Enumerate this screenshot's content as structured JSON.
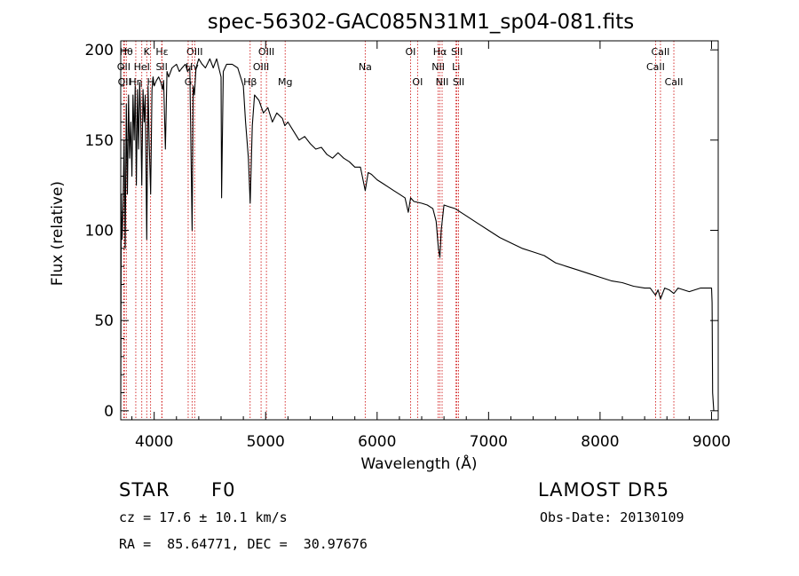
{
  "chart_data": {
    "type": "line",
    "title": "spec-56302-GAC085N31M1_sp04-081.fits",
    "xlabel": "Wavelength (Å)",
    "ylabel": "Flux (relative)",
    "xlim": [
      3700,
      9060
    ],
    "ylim": [
      -5,
      205
    ],
    "xticks": [
      4000,
      5000,
      6000,
      7000,
      8000,
      9000
    ],
    "yticks": [
      0,
      50,
      100,
      150,
      200
    ],
    "grid": false,
    "line_color": "#000000",
    "marker_color": "#cc0000",
    "series": [
      {
        "x": [
          3700,
          3705,
          3712,
          3720,
          3730,
          3740,
          3750,
          3760,
          3770,
          3780,
          3790,
          3800,
          3810,
          3820,
          3830,
          3840,
          3850,
          3860,
          3870,
          3880,
          3889,
          3900,
          3910,
          3920,
          3933,
          3945,
          3955,
          3968,
          3980,
          3990,
          4000,
          4020,
          4040,
          4060,
          4075,
          4085,
          4101,
          4115,
          4130,
          4160,
          4200,
          4226,
          4250,
          4280,
          4300,
          4320,
          4340,
          4350,
          4361,
          4375,
          4400,
          4430,
          4460,
          4500,
          4530,
          4560,
          4600,
          4605,
          4620,
          4650,
          4700,
          4750,
          4800,
          4820,
          4845,
          4861,
          4880,
          4900,
          4940,
          4980,
          5020,
          5060,
          5100,
          5150,
          5172,
          5200,
          5250,
          5300,
          5350,
          5400,
          5450,
          5500,
          5550,
          5600,
          5650,
          5700,
          5750,
          5800,
          5850,
          5893,
          5920,
          5950,
          6000,
          6050,
          6100,
          6150,
          6200,
          6250,
          6280,
          6300,
          6330,
          6400,
          6450,
          6500,
          6530,
          6550,
          6563,
          6575,
          6600,
          6650,
          6700,
          6750,
          6800,
          6900,
          7000,
          7100,
          7200,
          7300,
          7400,
          7500,
          7600,
          7700,
          7800,
          7900,
          8000,
          8100,
          8200,
          8300,
          8400,
          8450,
          8498,
          8520,
          8542,
          8580,
          8620,
          8662,
          8700,
          8750,
          8800,
          8850,
          8900,
          8950,
          8990,
          9000,
          9005,
          9010,
          9020
        ],
        "values": [
          0,
          120,
          95,
          110,
          150,
          90,
          170,
          120,
          175,
          140,
          160,
          130,
          175,
          150,
          180,
          125,
          178,
          145,
          182,
          160,
          125,
          178,
          160,
          175,
          95,
          180,
          150,
          120,
          178,
          185,
          180,
          183,
          185,
          182,
          178,
          183,
          145,
          188,
          185,
          190,
          192,
          188,
          190,
          192,
          188,
          190,
          100,
          180,
          175,
          190,
          195,
          192,
          190,
          195,
          190,
          195,
          185,
          118,
          188,
          192,
          192,
          190,
          180,
          160,
          140,
          115,
          158,
          175,
          172,
          165,
          168,
          160,
          165,
          162,
          158,
          160,
          155,
          150,
          152,
          148,
          145,
          146,
          142,
          140,
          143,
          140,
          138,
          135,
          135,
          122,
          132,
          131,
          128,
          126,
          124,
          122,
          120,
          118,
          110,
          118,
          116,
          115,
          114,
          112,
          105,
          90,
          85,
          100,
          114,
          113,
          112,
          110,
          108,
          104,
          100,
          96,
          93,
          90,
          88,
          86,
          82,
          80,
          78,
          76,
          74,
          72,
          71,
          69,
          68,
          68,
          64,
          67,
          62,
          68,
          67,
          65,
          68,
          67,
          66,
          67,
          68,
          68,
          68,
          68,
          60,
          10,
          0
        ]
      }
    ],
    "line_markers": [
      {
        "label": "Hθ",
        "x": 3750,
        "row": 1
      },
      {
        "label": "OII",
        "x": 3727,
        "row": 2
      },
      {
        "label": "Hη",
        "x": 3835,
        "row": 3
      },
      {
        "label": "OII",
        "x": 3733,
        "row": 3
      },
      {
        "label": "K",
        "x": 3933,
        "row": 1
      },
      {
        "label": "HeI",
        "x": 3889,
        "row": 2
      },
      {
        "label": "Hε",
        "x": 4070,
        "row": 1
      },
      {
        "label": "SII",
        "x": 4068,
        "row": 2
      },
      {
        "label": "H",
        "x": 3968,
        "row": 3
      },
      {
        "label": "OIII",
        "x": 4363,
        "row": 1
      },
      {
        "label": "Hγ",
        "x": 4340,
        "row": 2
      },
      {
        "label": "G",
        "x": 4305,
        "row": 3
      },
      {
        "label": "OIII",
        "x": 5007,
        "row": 1
      },
      {
        "label": "OIII",
        "x": 4959,
        "row": 2
      },
      {
        "label": "Hβ",
        "x": 4861,
        "row": 3
      },
      {
        "label": "Mg",
        "x": 5175,
        "row": 3
      },
      {
        "label": "Na",
        "x": 5893,
        "row": 2
      },
      {
        "label": "OI",
        "x": 6300,
        "row": 1
      },
      {
        "label": "OI",
        "x": 6363,
        "row": 3
      },
      {
        "label": "Hα",
        "x": 6563,
        "row": 1
      },
      {
        "label": "SII",
        "x": 6716,
        "row": 1
      },
      {
        "label": "NII",
        "x": 6548,
        "row": 2
      },
      {
        "label": "Li",
        "x": 6708,
        "row": 2
      },
      {
        "label": "NII",
        "x": 6583,
        "row": 3
      },
      {
        "label": "SII",
        "x": 6731,
        "row": 3
      },
      {
        "label": "CaII",
        "x": 8542,
        "row": 1
      },
      {
        "label": "CaII",
        "x": 8498,
        "row": 2
      },
      {
        "label": "CaII",
        "x": 8662,
        "row": 3
      }
    ]
  },
  "info": {
    "class_label": "STAR",
    "subclass": "F0",
    "survey": "LAMOST DR5",
    "redshift": "cz = 17.6 ± 10.1 km/s",
    "obs_date": "Obs-Date: 20130109",
    "coords": "RA =  85.64771, DEC =  30.97676"
  }
}
